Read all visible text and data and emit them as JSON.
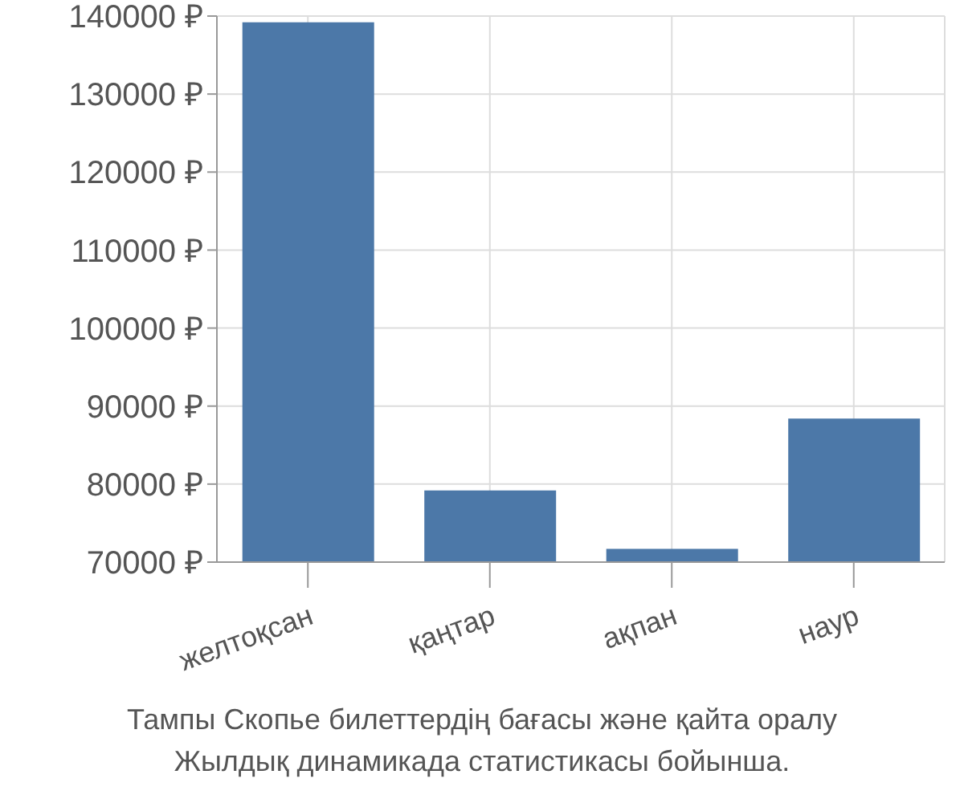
{
  "chart_data": {
    "type": "bar",
    "categories": [
      "желтоқсан",
      "қаңтар",
      "ақпан",
      "наур"
    ],
    "values": [
      139200,
      79200,
      71700,
      88400
    ],
    "color": "#4c78a8",
    "ylim": [
      70000,
      140000
    ],
    "yticks": [
      {
        "value": 70000,
        "label": "70000 ₽"
      },
      {
        "value": 80000,
        "label": "80000 ₽"
      },
      {
        "value": 90000,
        "label": "90000 ₽"
      },
      {
        "value": 100000,
        "label": "100000 ₽"
      },
      {
        "value": 110000,
        "label": "110000 ₽"
      },
      {
        "value": 120000,
        "label": "120000 ₽"
      },
      {
        "value": 130000,
        "label": "130000 ₽"
      },
      {
        "value": 140000,
        "label": "140000 ₽"
      }
    ],
    "grid": true,
    "annotations": [
      "Тампы Скопье билеттердің бағасы және қайта оралу",
      "Жылдық динамикада статистикасы бойынша."
    ]
  }
}
